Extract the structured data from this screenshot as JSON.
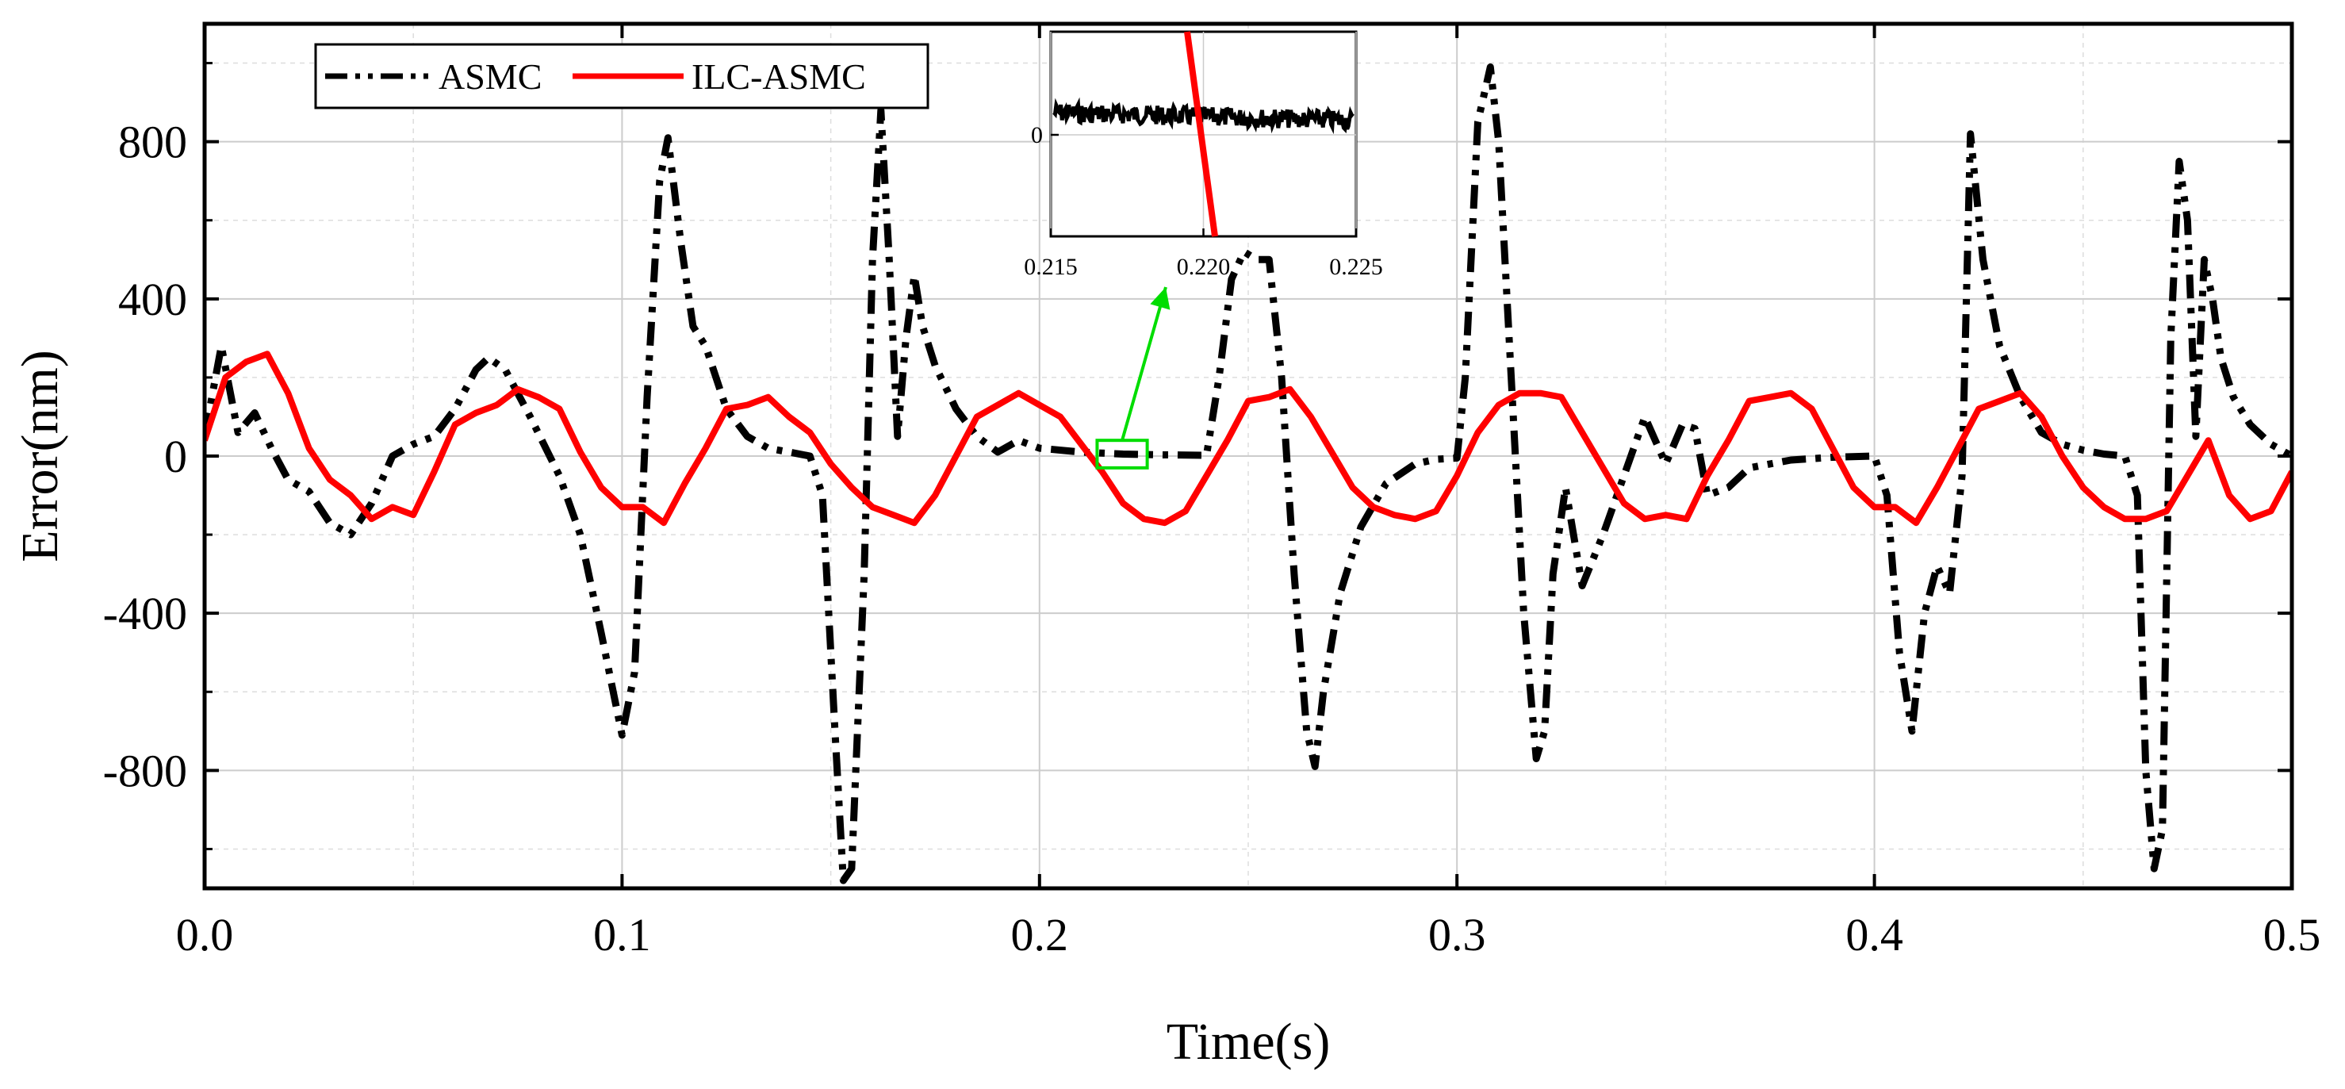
{
  "chart_data": {
    "type": "line",
    "title": "",
    "xlabel": "Time(s)",
    "ylabel": "Error(nm)",
    "xlim": [
      0.0,
      0.5
    ],
    "ylim": [
      -1100,
      1100
    ],
    "x_ticks": [
      0.0,
      0.1,
      0.2,
      0.3,
      0.4,
      0.5
    ],
    "x_tick_labels": [
      "0.0",
      "0.1",
      "0.2",
      "0.3",
      "0.4",
      "0.5"
    ],
    "y_ticks": [
      -800,
      -400,
      0,
      400,
      800
    ],
    "y_tick_labels": [
      "-800",
      "-400",
      "0",
      "400",
      "800"
    ],
    "grid": true,
    "legend_position": "top-left",
    "series": [
      {
        "name": "ASMC",
        "color": "#000000",
        "style": "dash-dot-dot",
        "x": [
          0.0,
          0.004,
          0.008,
          0.012,
          0.016,
          0.02,
          0.025,
          0.03,
          0.035,
          0.04,
          0.045,
          0.05,
          0.055,
          0.06,
          0.065,
          0.068,
          0.072,
          0.078,
          0.085,
          0.09,
          0.095,
          0.1,
          0.103,
          0.106,
          0.109,
          0.111,
          0.114,
          0.117,
          0.12,
          0.125,
          0.13,
          0.135,
          0.14,
          0.145,
          0.148,
          0.151,
          0.153,
          0.155,
          0.158,
          0.16,
          0.162,
          0.164,
          0.166,
          0.168,
          0.17,
          0.172,
          0.175,
          0.18,
          0.185,
          0.19,
          0.195,
          0.2,
          0.21,
          0.22,
          0.23,
          0.24,
          0.243,
          0.246,
          0.249,
          0.252,
          0.255,
          0.258,
          0.261,
          0.264,
          0.266,
          0.268,
          0.272,
          0.277,
          0.283,
          0.29,
          0.295,
          0.3,
          0.302,
          0.305,
          0.308,
          0.31,
          0.313,
          0.316,
          0.319,
          0.321,
          0.323,
          0.326,
          0.33,
          0.335,
          0.34,
          0.345,
          0.35,
          0.354,
          0.357,
          0.36,
          0.365,
          0.37,
          0.38,
          0.39,
          0.4,
          0.403,
          0.406,
          0.409,
          0.412,
          0.415,
          0.418,
          0.421,
          0.423,
          0.426,
          0.43,
          0.435,
          0.44,
          0.445,
          0.45,
          0.455,
          0.46,
          0.463,
          0.465,
          0.467,
          0.469,
          0.471,
          0.473,
          0.475,
          0.477,
          0.479,
          0.481,
          0.483,
          0.486,
          0.49,
          0.495,
          0.5
        ],
        "y": [
          50,
          280,
          60,
          110,
          20,
          -60,
          -90,
          -170,
          -200,
          -120,
          0,
          30,
          50,
          120,
          220,
          250,
          220,
          100,
          -50,
          -200,
          -450,
          -710,
          -550,
          150,
          700,
          810,
          550,
          330,
          280,
          120,
          50,
          20,
          10,
          0,
          -100,
          -700,
          -1080,
          -1050,
          -300,
          500,
          880,
          500,
          50,
          300,
          460,
          330,
          230,
          120,
          50,
          10,
          40,
          20,
          10,
          5,
          3,
          2,
          200,
          450,
          520,
          500,
          500,
          200,
          -300,
          -700,
          -790,
          -600,
          -350,
          -180,
          -70,
          -20,
          -8,
          -5,
          200,
          850,
          990,
          800,
          200,
          -400,
          -770,
          -700,
          -300,
          -80,
          -330,
          -200,
          -50,
          100,
          -20,
          80,
          70,
          -100,
          -80,
          -30,
          -10,
          -3,
          0,
          -100,
          -500,
          -700,
          -400,
          -280,
          -350,
          -50,
          820,
          500,
          280,
          150,
          60,
          30,
          15,
          5,
          0,
          -100,
          -800,
          -1050,
          -950,
          300,
          750,
          600,
          50,
          500,
          400,
          250,
          150,
          80,
          30,
          0
        ]
      },
      {
        "name": "ILC-ASMC",
        "color": "#ff0000",
        "style": "solid",
        "x": [
          0.0,
          0.005,
          0.01,
          0.015,
          0.02,
          0.025,
          0.03,
          0.035,
          0.04,
          0.045,
          0.05,
          0.055,
          0.06,
          0.065,
          0.07,
          0.075,
          0.08,
          0.085,
          0.09,
          0.095,
          0.1,
          0.105,
          0.11,
          0.115,
          0.12,
          0.125,
          0.13,
          0.135,
          0.14,
          0.145,
          0.15,
          0.155,
          0.16,
          0.165,
          0.17,
          0.175,
          0.18,
          0.185,
          0.19,
          0.195,
          0.2,
          0.205,
          0.21,
          0.215,
          0.22,
          0.225,
          0.23,
          0.235,
          0.24,
          0.245,
          0.25,
          0.255,
          0.26,
          0.265,
          0.27,
          0.275,
          0.28,
          0.285,
          0.29,
          0.295,
          0.3,
          0.305,
          0.31,
          0.315,
          0.32,
          0.325,
          0.33,
          0.335,
          0.34,
          0.345,
          0.35,
          0.355,
          0.36,
          0.365,
          0.37,
          0.375,
          0.38,
          0.385,
          0.39,
          0.395,
          0.4,
          0.405,
          0.41,
          0.415,
          0.42,
          0.425,
          0.43,
          0.435,
          0.44,
          0.445,
          0.45,
          0.455,
          0.46,
          0.465,
          0.47,
          0.475,
          0.48,
          0.485,
          0.49,
          0.495,
          0.5
        ],
        "y": [
          40,
          200,
          240,
          260,
          160,
          20,
          -60,
          -100,
          -160,
          -130,
          -150,
          -40,
          80,
          110,
          130,
          170,
          150,
          120,
          10,
          -80,
          -130,
          -130,
          -170,
          -70,
          20,
          120,
          130,
          150,
          100,
          60,
          -20,
          -80,
          -130,
          -150,
          -170,
          -100,
          0,
          100,
          130,
          160,
          130,
          100,
          30,
          -40,
          -120,
          -160,
          -170,
          -140,
          -50,
          40,
          140,
          150,
          170,
          100,
          10,
          -80,
          -130,
          -150,
          -160,
          -140,
          -50,
          60,
          130,
          160,
          160,
          150,
          60,
          -30,
          -120,
          -160,
          -150,
          -160,
          -50,
          40,
          140,
          150,
          160,
          120,
          20,
          -80,
          -130,
          -130,
          -170,
          -80,
          20,
          120,
          140,
          160,
          100,
          0,
          -80,
          -130,
          -160,
          -160,
          -140,
          -50,
          40,
          -100,
          -160,
          -140,
          -40
        ]
      }
    ],
    "inset": {
      "xlim": [
        0.215,
        0.225
      ],
      "x_ticks": [
        0.215,
        0.22,
        0.225
      ],
      "x_tick_labels": [
        "0.215",
        "0.220",
        "0.225"
      ],
      "y_tick_labels": [
        "0"
      ],
      "zoom_box_x": [
        0.2138,
        0.2258
      ],
      "zoom_box_y": [
        -30,
        40
      ],
      "box_color": "#00dd00"
    }
  }
}
